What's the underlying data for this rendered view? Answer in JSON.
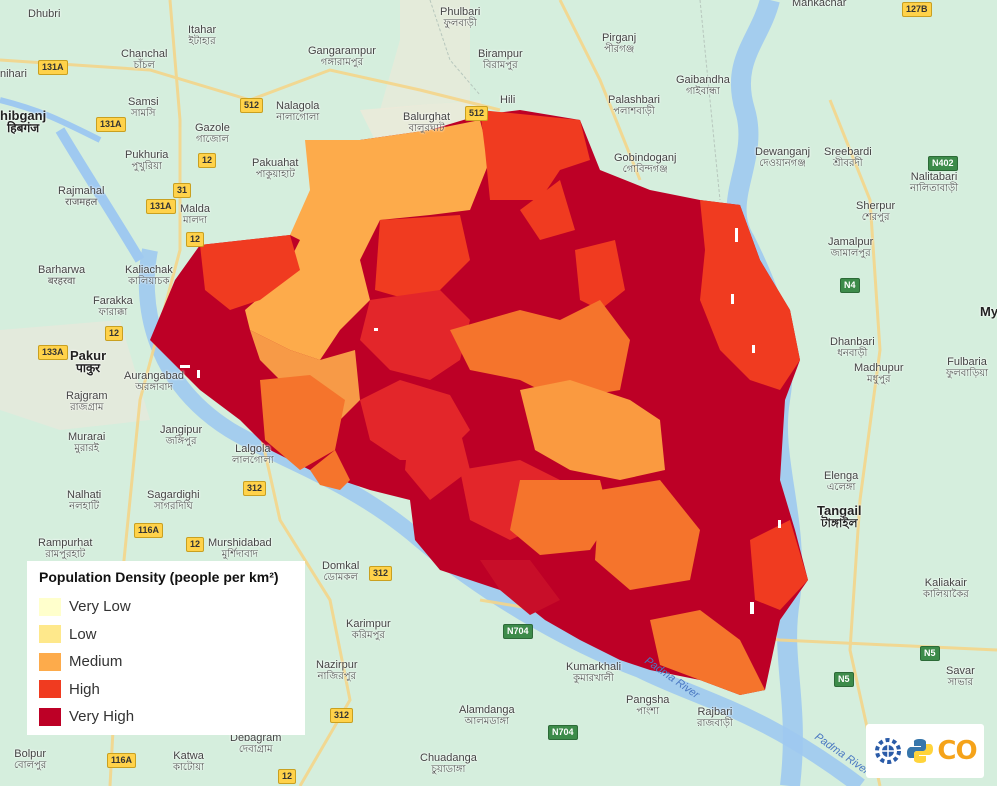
{
  "legend": {
    "title": "Population Density (people per km²)",
    "items": [
      {
        "label": "Very Low",
        "color": "#ffffcc"
      },
      {
        "label": "Low",
        "color": "#fee88b"
      },
      {
        "label": "Medium",
        "color": "#fdab4b"
      },
      {
        "label": "High",
        "color": "#f03b20"
      },
      {
        "label": "Very High",
        "color": "#bd0026"
      }
    ]
  },
  "places": [
    {
      "id": "phulbari",
      "en": "Phulbari",
      "bn": "ফুলবাড়ী"
    },
    {
      "id": "mankachar",
      "en": "Mankachar",
      "bn": ""
    },
    {
      "id": "itahar",
      "en": "Itahar",
      "bn": "ইটাহার"
    },
    {
      "id": "gangarampur",
      "en": "Gangarampur",
      "bn": "গঙ্গারামপুর"
    },
    {
      "id": "birampur",
      "en": "Birampur",
      "bn": "বিরামপুর"
    },
    {
      "id": "pirganj",
      "en": "Pirganj",
      "bn": "পীরগঞ্জ"
    },
    {
      "id": "chanchal",
      "en": "Chanchal",
      "bn": "চাঁচল"
    },
    {
      "id": "gaibandha",
      "en": "Gaibandha",
      "bn": "গাইবান্ধা"
    },
    {
      "id": "hili",
      "en": "Hili",
      "bn": ""
    },
    {
      "id": "palashbari",
      "en": "Palashbari",
      "bn": "পলাশবাড়ী"
    },
    {
      "id": "nalagola",
      "en": "Nalagola",
      "bn": "নালাগোলা"
    },
    {
      "id": "samsi",
      "en": "Samsi",
      "bn": "সামসি"
    },
    {
      "id": "balurghat",
      "en": "Balurghat",
      "bn": "বালুরঘাট"
    },
    {
      "id": "gazole",
      "en": "Gazole",
      "bn": "গাজোল"
    },
    {
      "id": "dewanganj",
      "en": "Dewanganj",
      "bn": "দেওয়ানগঞ্জ"
    },
    {
      "id": "sreebardi",
      "en": "Sreebardi",
      "bn": "শ্রীবরদী"
    },
    {
      "id": "pukhuria",
      "en": "Pukhuria",
      "bn": "পুখুরিয়া"
    },
    {
      "id": "gobindoganj",
      "en": "Gobindoganj",
      "bn": "গোবিন্দগঞ্জ"
    },
    {
      "id": "pakuahat",
      "en": "Pakuahat",
      "bn": "পাকুয়াহাট"
    },
    {
      "id": "nalitabari",
      "en": "Nalitabari",
      "bn": "নালিতাবাড়ী"
    },
    {
      "id": "rajmahal",
      "en": "Rajmahal",
      "bn": "राजमहल"
    },
    {
      "id": "malda",
      "en": "Malda",
      "bn": "মালদা"
    },
    {
      "id": "sherpur",
      "en": "Sherpur",
      "bn": "শেরপুর"
    },
    {
      "id": "jamalpur",
      "en": "Jamalpur",
      "bn": "জামালপুর"
    },
    {
      "id": "barharwa",
      "en": "Barharwa",
      "bn": "बरहरवा"
    },
    {
      "id": "kaliachak",
      "en": "Kaliachak",
      "bn": "কালিয়াচক"
    },
    {
      "id": "farakka",
      "en": "Farakka",
      "bn": "ফারাক্কা"
    },
    {
      "id": "dhanbari",
      "en": "Dhanbari",
      "bn": "ধনবাড়ী"
    },
    {
      "id": "madhupur",
      "en": "Madhupur",
      "bn": "মধুপুর"
    },
    {
      "id": "fulbaria",
      "en": "Fulbaria",
      "bn": "ফুলবাড়িয়া"
    },
    {
      "id": "aurangabad",
      "en": "Aurangabad",
      "bn": "অরঙ্গাবাদ"
    },
    {
      "id": "rajgram",
      "en": "Rajgram",
      "bn": "রাজগ্রাম"
    },
    {
      "id": "jangipur",
      "en": "Jangipur",
      "bn": "জঙ্গিপুর"
    },
    {
      "id": "murarai",
      "en": "Murarai",
      "bn": "মুরারই"
    },
    {
      "id": "lalgola",
      "en": "Lalgola",
      "bn": "লালগোলা"
    },
    {
      "id": "elenga",
      "en": "Elenga",
      "bn": "এলেঙ্গা"
    },
    {
      "id": "nalhati",
      "en": "Nalhati",
      "bn": "নলহাটি"
    },
    {
      "id": "sagardighi",
      "en": "Sagardighi",
      "bn": "সাগরদিঘি"
    },
    {
      "id": "rampurhat",
      "en": "Rampurhat",
      "bn": "রামপুরহাট"
    },
    {
      "id": "murshidabad",
      "en": "Murshidabad",
      "bn": "মুর্শিদাবাদ"
    },
    {
      "id": "domkal",
      "en": "Domkal",
      "bn": "ডোমকল"
    },
    {
      "id": "kaliakair",
      "en": "Kaliakair",
      "bn": "কালিয়াকৈর"
    },
    {
      "id": "karimpur",
      "en": "Karimpur",
      "bn": "করিমপুর"
    },
    {
      "id": "kumarkhali",
      "en": "Kumarkhali",
      "bn": "কুমারখালী"
    },
    {
      "id": "nazirpur",
      "en": "Nazirpur",
      "bn": "নাজিরপুর"
    },
    {
      "id": "savar",
      "en": "Savar",
      "bn": "সাভার"
    },
    {
      "id": "alamdanga",
      "en": "Alamdanga",
      "bn": "আলমডাঙ্গা"
    },
    {
      "id": "pangsha",
      "en": "Pangsha",
      "bn": "পাংশা"
    },
    {
      "id": "rajbari",
      "en": "Rajbari",
      "bn": "রাজবাড়ী"
    },
    {
      "id": "bolpur",
      "en": "Bolpur",
      "bn": "বোলপুর"
    },
    {
      "id": "katwa",
      "en": "Katwa",
      "bn": "কাটোয়া"
    },
    {
      "id": "chuadanga",
      "en": "Chuadanga",
      "bn": "চুয়াডাঙ্গা"
    },
    {
      "id": "debagram",
      "en": "Debagram",
      "bn": "দেবাগ্রাম"
    }
  ],
  "big_places": [
    {
      "id": "sahibganj",
      "en": "hibganj",
      "bn": "हिबगंज"
    },
    {
      "id": "pakur",
      "en": "Pakur",
      "bn": "पाकुर"
    },
    {
      "id": "tangail",
      "en": "Tangail",
      "bn": "টাঙ্গাইল"
    },
    {
      "id": "my",
      "en": "My",
      "bn": ""
    }
  ],
  "shields": [
    "127B",
    "131A",
    "131A",
    "512",
    "512",
    "12",
    "31",
    "131A",
    "12",
    "N402",
    "N4",
    "133A",
    "12",
    "116A",
    "12",
    "312",
    "312",
    "N704",
    "N5",
    "N5",
    "312",
    "116A",
    "12",
    "N704"
  ],
  "rivers": [
    "Padma River",
    "Padma River"
  ],
  "fragments": [
    "Dhubri",
    "nihari",
    "nahi"
  ],
  "logo": {
    "text": "CO"
  }
}
